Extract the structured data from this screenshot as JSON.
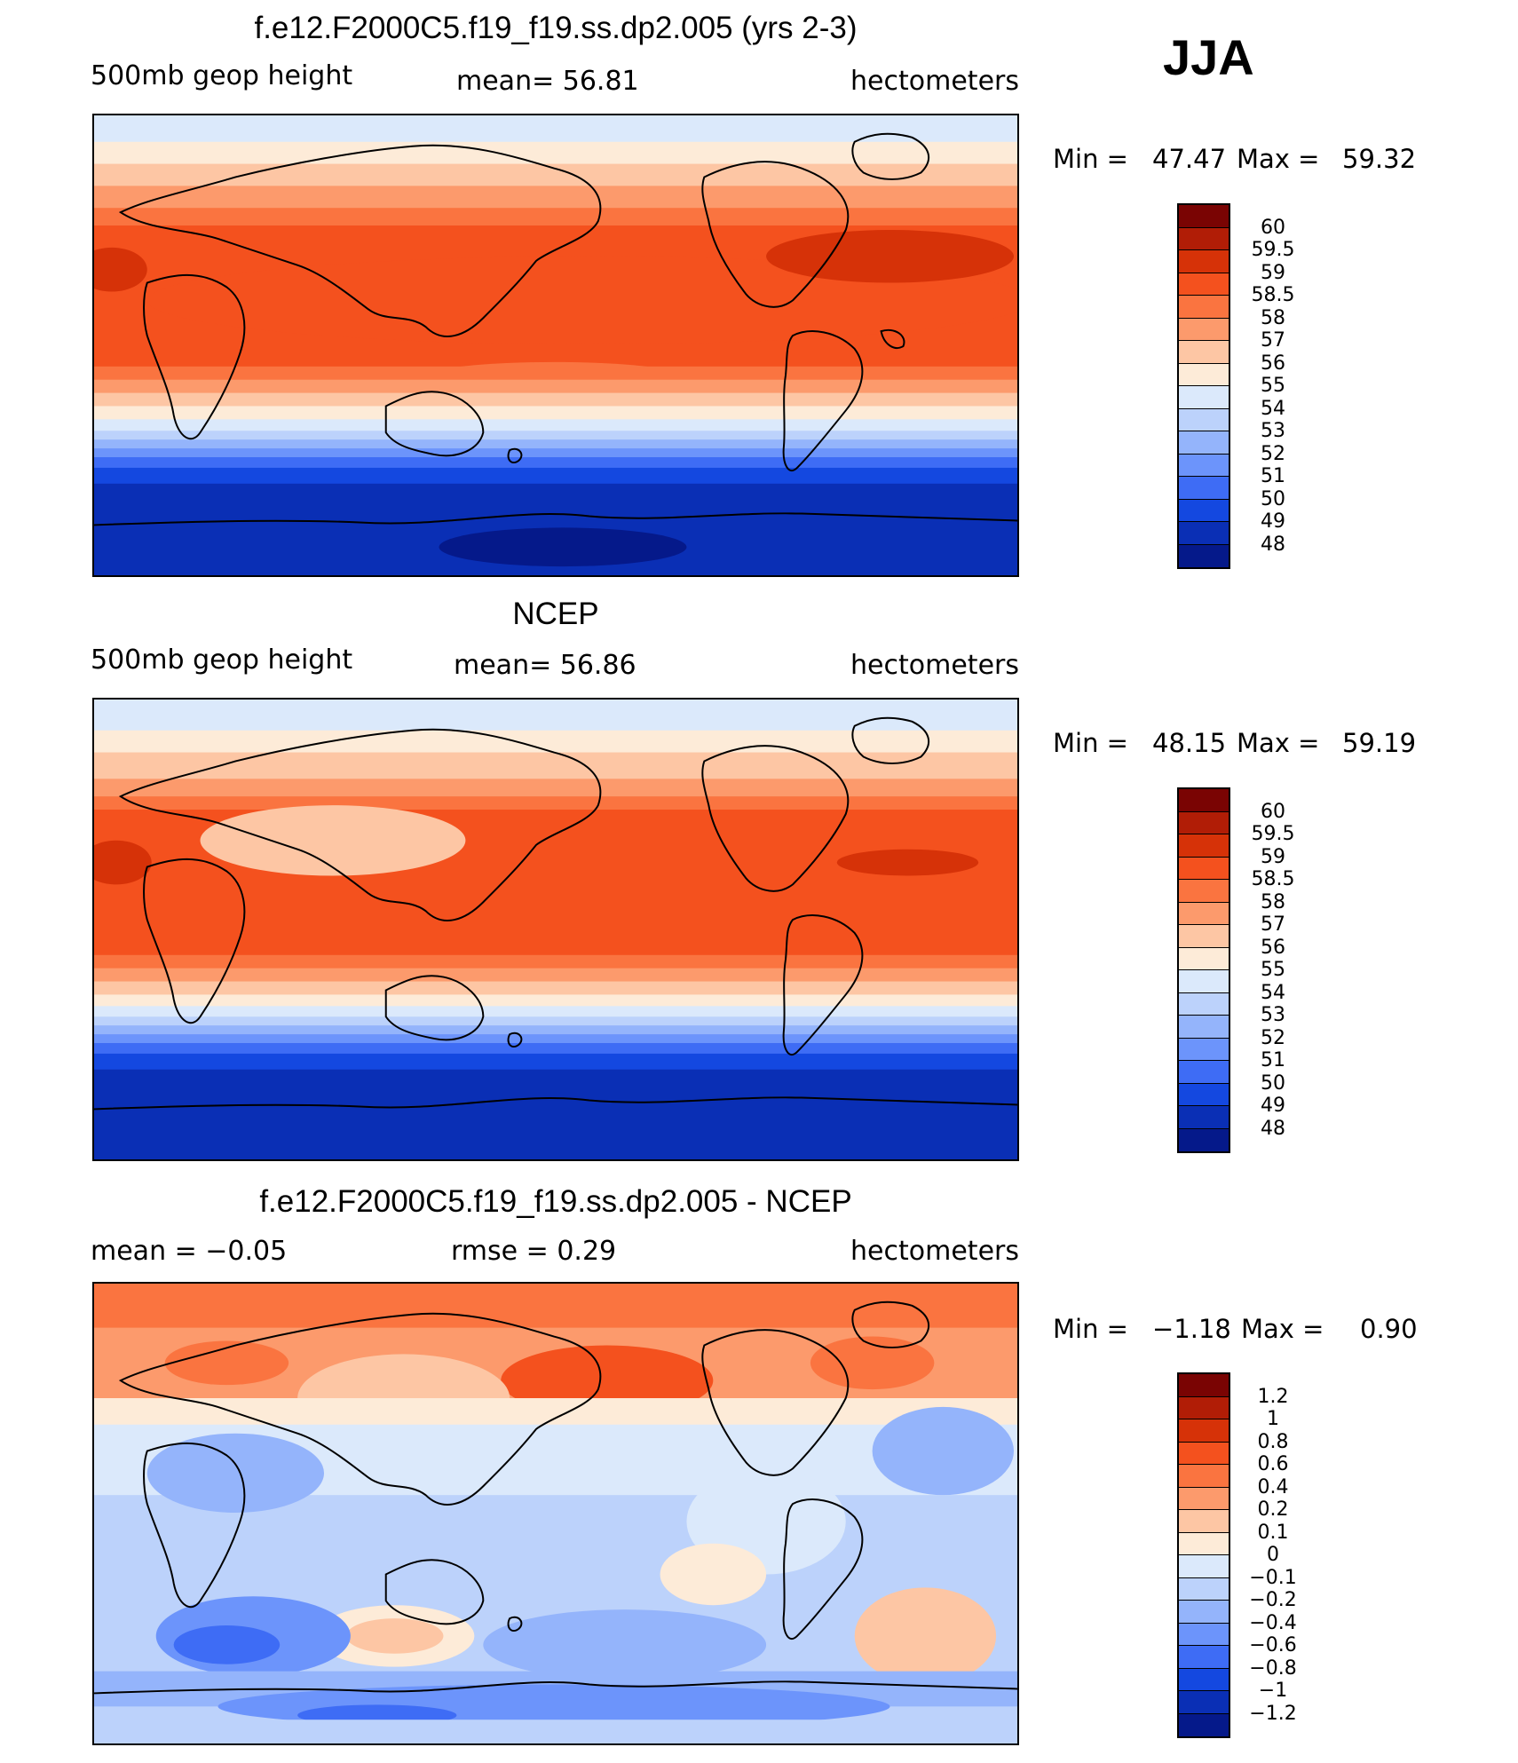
{
  "season": "JJA",
  "panels": [
    {
      "title": "f.e12.F2000C5.f19_f19.ss.dp2.005 (yrs 2-3)",
      "left_label": "500mb  geop  height",
      "center_label": "mean=   56.81",
      "right_label": "hectometers",
      "min_label": "Min  =",
      "min_value": "47.47",
      "max_label": "Max  =",
      "max_value": "59.32",
      "colorbar_labels": [
        "60",
        "59.5",
        "59",
        "58.5",
        "58",
        "57",
        "56",
        "55",
        "54",
        "53",
        "52",
        "51",
        "50",
        "49",
        "48"
      ]
    },
    {
      "title": "NCEP",
      "left_label": "500mb  geop  height",
      "center_label": "mean=   56.86",
      "right_label": "hectometers",
      "min_label": "Min  =",
      "min_value": "48.15",
      "max_label": "Max  =",
      "max_value": "59.19",
      "colorbar_labels": [
        "60",
        "59.5",
        "59",
        "58.5",
        "58",
        "57",
        "56",
        "55",
        "54",
        "53",
        "52",
        "51",
        "50",
        "49",
        "48"
      ]
    },
    {
      "title": "f.e12.F2000C5.f19_f19.ss.dp2.005 - NCEP",
      "left_label": "mean  =    −0.05",
      "center_label": "rmse  =     0.29",
      "right_label": "hectometers",
      "min_label": "Min  =",
      "min_value": "−1.18",
      "max_label": "Max  =",
      "max_value": "0.90",
      "colorbar_labels": [
        "1.2",
        "1",
        "0.8",
        "0.6",
        "0.4",
        "0.2",
        "0.1",
        "0",
        "−0.1",
        "−0.2",
        "−0.4",
        "−0.6",
        "−0.8",
        "−1",
        "−1.2"
      ]
    }
  ],
  "colorbar_colors": [
    "#7a0403",
    "#b11d06",
    "#d63208",
    "#f4511e",
    "#fa7440",
    "#fc9a6c",
    "#fdc6a4",
    "#fdebd8",
    "#dbe9fb",
    "#bcd2fb",
    "#94b4fb",
    "#6c94fb",
    "#3e6cf5",
    "#1448e0",
    "#0a2fb5",
    "#05198a"
  ]
}
